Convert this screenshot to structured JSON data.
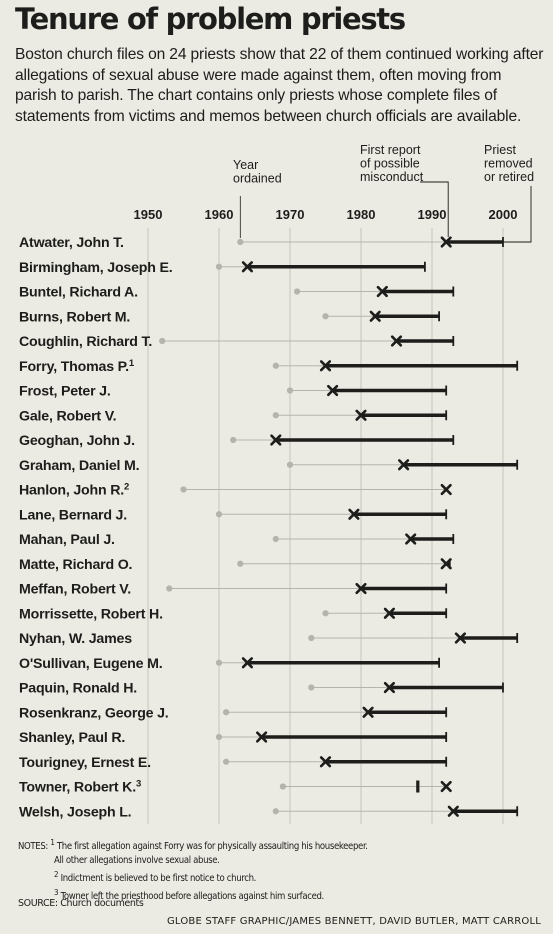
{
  "header": {
    "title": "Tenure of problem priests",
    "intro": "Boston church files on 24 priests show that 22 of them continued working after allegations of sexual abuse were made against them, often moving from parish to parish. The chart contains only priests whose complete files of statements from victims and memos between church officials are available."
  },
  "legend": {
    "ordained": "Year ordained",
    "first_report": "First report of possible misconduct",
    "removed": "Priest removed or retired"
  },
  "chart_data": {
    "type": "timeline",
    "x_ticks": [
      1950,
      1960,
      1970,
      1980,
      1990,
      2000
    ],
    "xlim": [
      1944,
      2004
    ],
    "grid": "vertical lines at each decade",
    "rows": [
      {
        "name": "Atwater, John T.",
        "ordained": 1963,
        "report": 1992,
        "end": 2000
      },
      {
        "name": "Birmingham, Joseph E.",
        "ordained": 1960,
        "report": 1964,
        "end": 1989
      },
      {
        "name": "Buntel, Richard A.",
        "ordained": 1971,
        "report": 1983,
        "end": 1993
      },
      {
        "name": "Burns, Robert M.",
        "ordained": 1975,
        "report": 1982,
        "end": 1991
      },
      {
        "name": "Coughlin, Richard T.",
        "ordained": 1952,
        "report": 1985,
        "end": 1993
      },
      {
        "name": "Forry, Thomas P.",
        "note_mark": "1",
        "ordained": 1968,
        "report": 1975,
        "end": 2002
      },
      {
        "name": "Frost, Peter J.",
        "ordained": 1970,
        "report": 1976,
        "end": 1992
      },
      {
        "name": "Gale, Robert V.",
        "ordained": 1968,
        "report": 1980,
        "end": 1992
      },
      {
        "name": "Geoghan, John J.",
        "ordained": 1962,
        "report": 1968,
        "end": 1993
      },
      {
        "name": "Graham, Daniel M.",
        "ordained": 1970,
        "report": 1986,
        "end": 2002
      },
      {
        "name": "Hanlon, John R.",
        "note_mark": "2",
        "ordained": 1955,
        "report": 1992,
        "end": 1992
      },
      {
        "name": "Lane, Bernard J.",
        "ordained": 1960,
        "report": 1979,
        "end": 1992
      },
      {
        "name": "Mahan, Paul J.",
        "ordained": 1968,
        "report": 1987,
        "end": 1993
      },
      {
        "name": "Matte, Richard O.",
        "ordained": 1963,
        "report": 1992,
        "end": 1992.5
      },
      {
        "name": "Meffan, Robert V.",
        "ordained": 1953,
        "report": 1980,
        "end": 1992
      },
      {
        "name": "Morrissette, Robert H.",
        "ordained": 1975,
        "report": 1984,
        "end": 1992
      },
      {
        "name": "Nyhan, W. James",
        "ordained": 1973,
        "report": 1994,
        "end": 2002
      },
      {
        "name": "O'Sullivan, Eugene M.",
        "ordained": 1960,
        "report": 1964,
        "end": 1991
      },
      {
        "name": "Paquin, Ronald H.",
        "ordained": 1973,
        "report": 1984,
        "end": 2000
      },
      {
        "name": "Rosenkranz, George J.",
        "ordained": 1961,
        "report": 1981,
        "end": 1992
      },
      {
        "name": "Shanley, Paul R.",
        "ordained": 1960,
        "report": 1966,
        "end": 1992
      },
      {
        "name": "Tourigney, Ernest E.",
        "ordained": 1961,
        "report": 1975,
        "end": 1992
      },
      {
        "name": "Towner, Robert K.",
        "note_mark": "3",
        "ordained": 1969,
        "report": 1992,
        "left_priesthood": 1988
      },
      {
        "name": "Welsh, Joseph L.",
        "ordained": 1968,
        "report": 1993,
        "end": 2002
      }
    ]
  },
  "notes": {
    "label": "NOTES:",
    "note1_mark": "1",
    "note1": "The first allegation against Forry was for physically assaulting his housekeeper.",
    "note1b": "All other allegations involve sexual abuse.",
    "note2_mark": "2",
    "note2": "Indictment is believed to be first notice to church.",
    "note3_mark": "3",
    "note3": "Towner left the priesthood before allegations against him surfaced."
  },
  "source": "SOURCE: Church documents",
  "credit": "GLOBE STAFF GRAPHIC/JAMES BENNETT, DAVID BUTLER, MATT CARROLL",
  "colors": {
    "background": "#ebeae3",
    "ink": "#1d1d1b",
    "ordained_marker": "#b4b4ac",
    "grid": "#bdbdb5"
  }
}
